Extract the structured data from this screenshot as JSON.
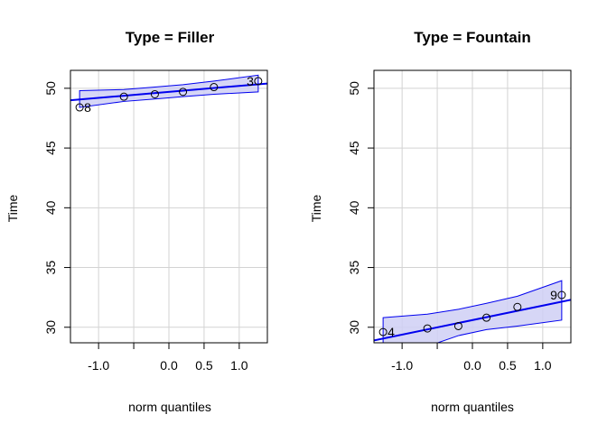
{
  "chart_data": [
    {
      "type": "scatter",
      "title": "Type = Filler",
      "xlabel": "norm quantiles",
      "ylabel": "Time",
      "xlim": [
        -1.4,
        1.4
      ],
      "ylim": [
        28.7,
        51.5
      ],
      "xticks": [
        -1.0,
        -0.5,
        0.0,
        0.5,
        1.0
      ],
      "xtick_labels": [
        "-1.0",
        "",
        "0.0",
        "0.5",
        "1.0"
      ],
      "yticks": [
        30,
        35,
        40,
        45,
        50
      ],
      "ytick_labels": [
        "30",
        "35",
        "40",
        "45",
        "50"
      ],
      "grid": true,
      "points": [
        {
          "x": -1.27,
          "y": 48.4,
          "label": "8"
        },
        {
          "x": -0.64,
          "y": 49.3,
          "label": ""
        },
        {
          "x": -0.2,
          "y": 49.5,
          "label": ""
        },
        {
          "x": 0.2,
          "y": 49.7,
          "label": ""
        },
        {
          "x": 0.64,
          "y": 50.1,
          "label": ""
        },
        {
          "x": 1.27,
          "y": 50.6,
          "label": "3"
        }
      ],
      "fit_line": {
        "x": [
          -1.4,
          1.4
        ],
        "y": [
          49.0,
          50.4
        ]
      },
      "confidence_band": {
        "x": [
          -1.27,
          -0.64,
          -0.2,
          0.2,
          0.64,
          1.27
        ],
        "upper": [
          49.8,
          49.9,
          50.1,
          50.3,
          50.6,
          51.1
        ],
        "lower": [
          48.4,
          48.9,
          49.1,
          49.3,
          49.5,
          49.7
        ]
      },
      "colors": {
        "line": "#0000ee",
        "band": "#cfcff5",
        "grid": "#d3d3d3",
        "point": "#000000"
      }
    },
    {
      "type": "scatter",
      "title": "Type = Fountain",
      "xlabel": "norm quantiles",
      "ylabel": "Time",
      "xlim": [
        -1.4,
        1.4
      ],
      "ylim": [
        28.7,
        51.5
      ],
      "xticks": [
        -1.0,
        -0.5,
        0.0,
        0.5,
        1.0
      ],
      "xtick_labels": [
        "-1.0",
        "",
        "0.0",
        "0.5",
        "1.0"
      ],
      "yticks": [
        30,
        35,
        40,
        45,
        50
      ],
      "ytick_labels": [
        "30",
        "35",
        "40",
        "45",
        "50"
      ],
      "grid": true,
      "points": [
        {
          "x": -1.27,
          "y": 29.6,
          "label": "4"
        },
        {
          "x": -0.64,
          "y": 29.9,
          "label": ""
        },
        {
          "x": -0.2,
          "y": 30.1,
          "label": ""
        },
        {
          "x": 0.2,
          "y": 30.8,
          "label": ""
        },
        {
          "x": 0.64,
          "y": 31.7,
          "label": ""
        },
        {
          "x": 1.27,
          "y": 32.7,
          "label": "9"
        }
      ],
      "fit_line": {
        "x": [
          -1.4,
          1.4
        ],
        "y": [
          28.9,
          32.3
        ]
      },
      "confidence_band": {
        "x": [
          -1.27,
          -0.64,
          -0.2,
          0.2,
          0.64,
          1.27
        ],
        "upper": [
          30.8,
          31.1,
          31.5,
          32.0,
          32.6,
          33.9
        ],
        "lower": [
          27.6,
          28.4,
          29.3,
          29.8,
          30.1,
          30.6
        ]
      },
      "colors": {
        "line": "#0000ee",
        "band": "#cfcff5",
        "grid": "#d3d3d3",
        "point": "#000000"
      }
    }
  ]
}
